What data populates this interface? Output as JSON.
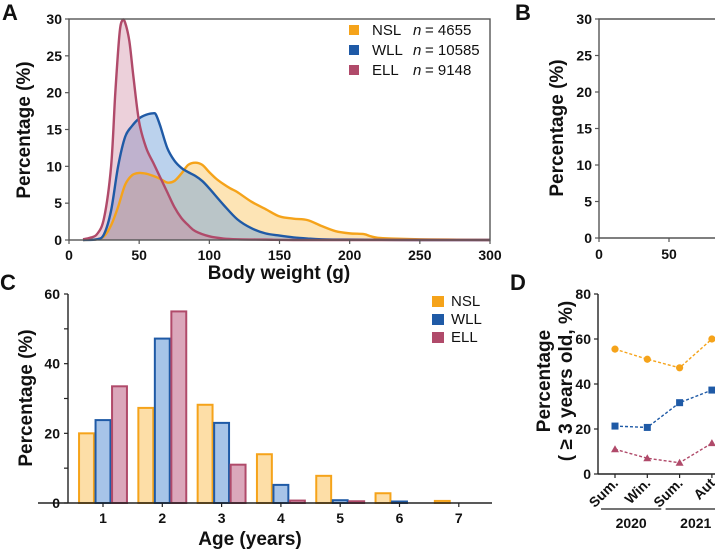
{
  "colors": {
    "NSL": "#f5a31a",
    "WLL": "#1f5aa6",
    "ELL": "#b04a6a",
    "NSL_fill": "rgba(252,205,120,0.55)",
    "WLL_fill": "rgba(120,165,220,0.5)",
    "ELL_fill": "rgba(200,120,150,0.35)"
  },
  "chart_data": [
    {
      "panel": "A",
      "type": "area",
      "title": "",
      "xlabel": "Body weight (g)",
      "ylabel": "Percentage (%)",
      "xlim": [
        0,
        300
      ],
      "ylim": [
        0,
        30
      ],
      "xticks": [
        "0",
        "50",
        "100",
        "150",
        "200",
        "250",
        "300"
      ],
      "yticks": [
        "0",
        "5",
        "10",
        "15",
        "20",
        "25",
        "30"
      ],
      "legend_position": "top-right",
      "legend": [
        {
          "name": "NSL",
          "n_label": "n",
          "n_value": "= 4655"
        },
        {
          "name": "WLL",
          "n_label": "n",
          "n_value": "= 10585"
        },
        {
          "name": "ELL",
          "n_label": "n",
          "n_value": "= 9148"
        }
      ],
      "series": [
        {
          "name": "NSL",
          "x": [
            10,
            20,
            25,
            30,
            35,
            40,
            45,
            50,
            55,
            60,
            65,
            70,
            75,
            80,
            85,
            90,
            95,
            100,
            105,
            110,
            115,
            120,
            130,
            140,
            150,
            160,
            170,
            180,
            190,
            200,
            210,
            215,
            220,
            230,
            250,
            270,
            300
          ],
          "y": [
            0,
            0.1,
            0.5,
            2,
            4.5,
            7.5,
            8.8,
            9.1,
            9.0,
            8.7,
            8.3,
            7.8,
            8.0,
            9.0,
            10.2,
            10.5,
            10.2,
            9.2,
            8.3,
            7.6,
            7.0,
            6.5,
            5.2,
            4.2,
            3.2,
            2.9,
            2.7,
            1.9,
            1.2,
            0.9,
            0.8,
            0.5,
            0.3,
            0.2,
            0.1,
            0.05,
            0
          ]
        },
        {
          "name": "WLL",
          "x": [
            10,
            20,
            25,
            30,
            35,
            40,
            45,
            50,
            55,
            60,
            62,
            65,
            70,
            75,
            80,
            85,
            90,
            95,
            100,
            110,
            120,
            130,
            140,
            150,
            160,
            170,
            180,
            200,
            250,
            300
          ],
          "y": [
            0,
            0.1,
            0.8,
            4,
            10,
            14,
            15.5,
            16.5,
            17,
            17.2,
            17,
            15.5,
            12.5,
            10.8,
            9.8,
            9.2,
            8.7,
            8.0,
            7.0,
            4.8,
            2.8,
            1.6,
            0.9,
            0.6,
            0.35,
            0.2,
            0.1,
            0.05,
            0,
            0
          ]
        },
        {
          "name": "ELL",
          "x": [
            10,
            15,
            20,
            25,
            30,
            33,
            36,
            38,
            40,
            43,
            46,
            50,
            55,
            60,
            65,
            70,
            75,
            80,
            85,
            90,
            100,
            110,
            120,
            140,
            160,
            200,
            300
          ],
          "y": [
            0.1,
            0.3,
            0.8,
            3,
            10,
            20,
            28,
            29.8,
            29.5,
            27,
            22,
            16,
            12.5,
            10.5,
            8.5,
            6.5,
            4.5,
            3.0,
            2.0,
            1.2,
            0.5,
            0.2,
            0.1,
            0.05,
            0,
            0,
            0
          ]
        }
      ]
    },
    {
      "panel": "B",
      "type": "area",
      "xlabel": "",
      "ylabel": "Percentage (%)",
      "xlim": [
        0,
        50
      ],
      "ylim": [
        0,
        30
      ],
      "xticks": [
        "0",
        "50"
      ],
      "yticks": [
        "0",
        "5",
        "10",
        "15",
        "20",
        "25",
        "30"
      ],
      "series": []
    },
    {
      "panel": "C",
      "type": "bar",
      "xlabel": "Age (years)",
      "ylabel": "Percentage (%)",
      "ylim": [
        0,
        60
      ],
      "categories": [
        "1",
        "2",
        "3",
        "4",
        "5",
        "6",
        "7"
      ],
      "yticks": [
        "0",
        "20",
        "40",
        "60"
      ],
      "legend_position": "top-right",
      "legend": [
        "NSL",
        "WLL",
        "ELL"
      ],
      "series": [
        {
          "name": "NSL",
          "values": [
            20,
            27.3,
            28.2,
            14,
            7.8,
            2.8,
            0.6
          ]
        },
        {
          "name": "WLL",
          "values": [
            23.8,
            47.2,
            23,
            5.2,
            0.8,
            0.4,
            0
          ]
        },
        {
          "name": "ELL",
          "values": [
            33.5,
            55,
            11,
            0.7,
            0.5,
            0,
            0
          ]
        }
      ]
    },
    {
      "panel": "D",
      "type": "line",
      "xlabel": "",
      "ylabel": "Percentage",
      "ylabel2": "( ≥ 3 years old, %)",
      "ylim": [
        0,
        80
      ],
      "yticks": [
        "0",
        "20",
        "40",
        "60",
        "80"
      ],
      "categories": [
        "Sum.",
        "Win.",
        "Sum.",
        "Aut"
      ],
      "year_groups": [
        {
          "label": "2020",
          "span": [
            0,
            1
          ]
        },
        {
          "label": "2021",
          "span": [
            2,
            3
          ]
        }
      ],
      "series": [
        {
          "name": "NSL",
          "marker": "circle",
          "values": [
            55.5,
            51,
            47.2,
            60
          ]
        },
        {
          "name": "WLL",
          "marker": "square",
          "values": [
            21.3,
            20.7,
            31.7,
            37.3
          ]
        },
        {
          "name": "ELL",
          "marker": "triangle",
          "values": [
            11,
            7,
            5,
            13.7
          ]
        }
      ]
    }
  ]
}
